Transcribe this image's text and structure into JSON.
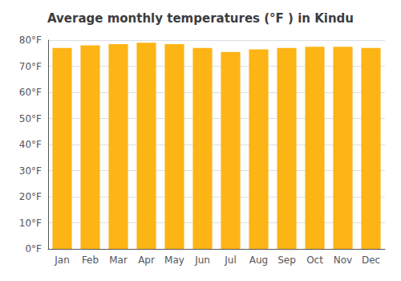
{
  "chart_data": {
    "type": "bar",
    "title": "Average monthly temperatures (°F ) in Kindu",
    "categories": [
      "Jan",
      "Feb",
      "Mar",
      "Apr",
      "May",
      "Jun",
      "Jul",
      "Aug",
      "Sep",
      "Oct",
      "Nov",
      "Dec"
    ],
    "values": [
      77,
      78,
      78.5,
      79,
      78.5,
      77,
      75.5,
      76.5,
      77,
      77.5,
      77.5,
      77
    ],
    "color": "#FDB515",
    "ylim": [
      0,
      80
    ],
    "yticks": [
      {
        "value": 0,
        "label": "0°F"
      },
      {
        "value": 10,
        "label": "10°F"
      },
      {
        "value": 20,
        "label": "20°F"
      },
      {
        "value": 30,
        "label": "30°F"
      },
      {
        "value": 40,
        "label": "40°F"
      },
      {
        "value": 50,
        "label": "50°F"
      },
      {
        "value": 60,
        "label": "60°F"
      },
      {
        "value": 70,
        "label": "70°F"
      },
      {
        "value": 80,
        "label": "80°F"
      }
    ],
    "grid": true
  }
}
